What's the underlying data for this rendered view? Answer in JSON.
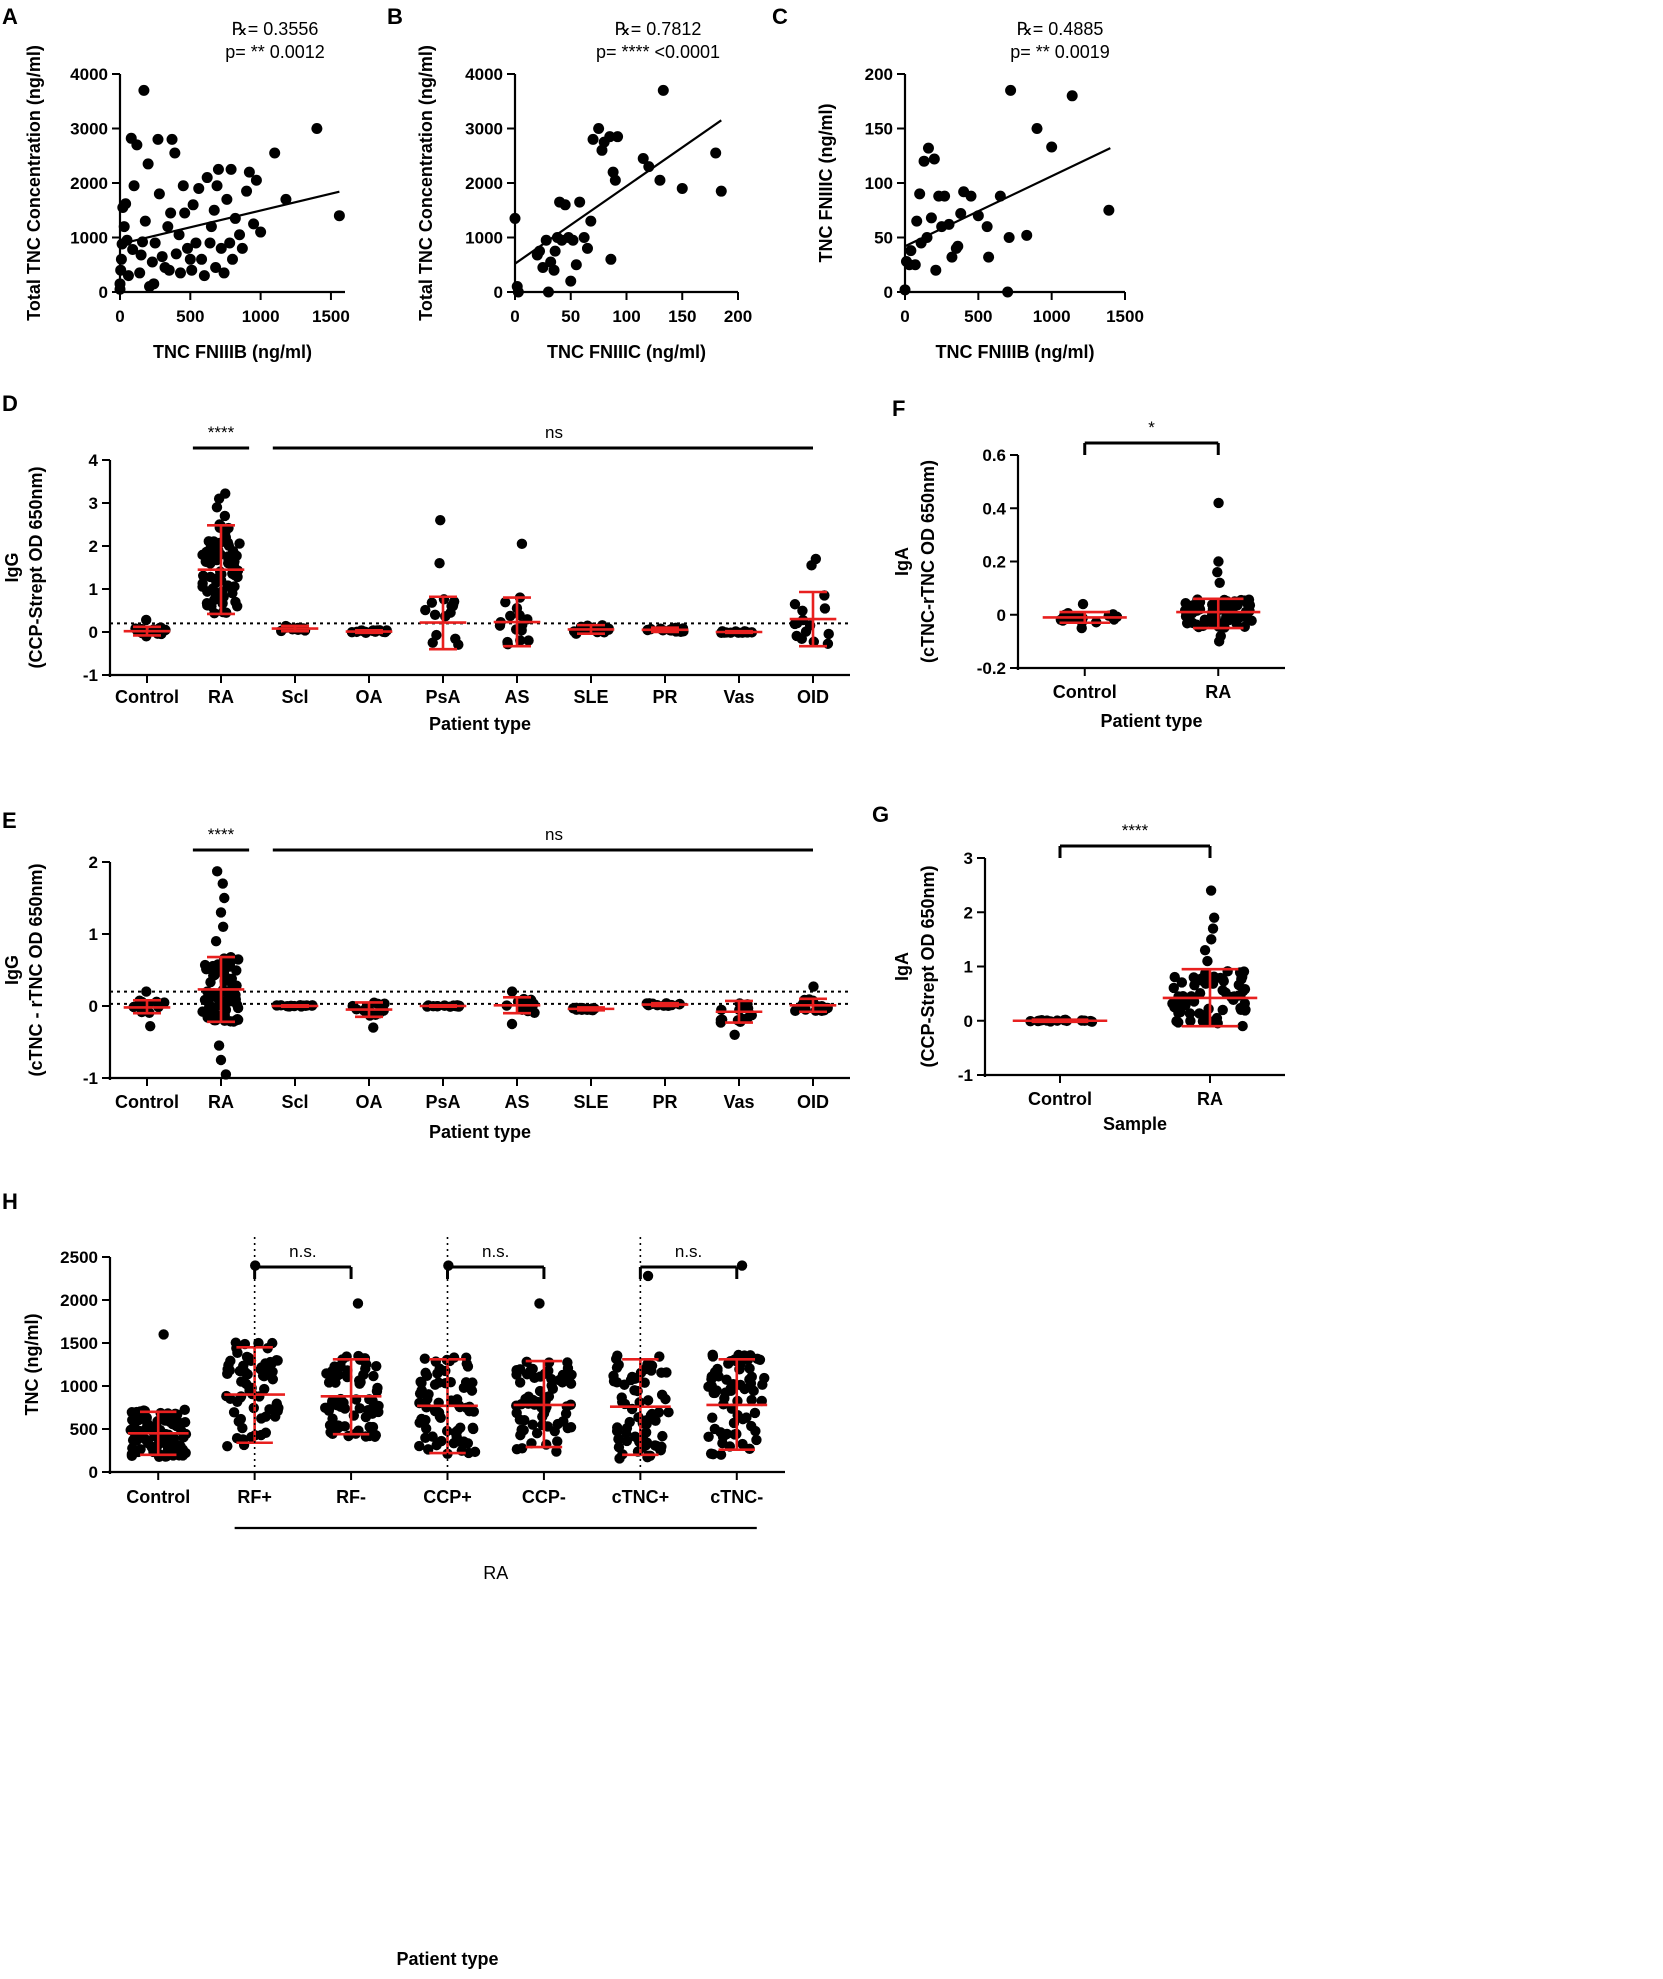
{
  "colors": {
    "ink": "#000000",
    "accent": "#e8201f"
  },
  "chart_data": [
    {
      "panel": "A",
      "type": "scatter",
      "stat_r": "℞= 0.3556",
      "stat_p": "p= ** 0.0012",
      "xlabel": "TNC FNIIIB (ng/ml)",
      "ylabel": "Total TNC Concentration (ng/ml)",
      "xlim": [
        0,
        1600
      ],
      "ylim": [
        0,
        4000
      ],
      "xticks": [
        0,
        500,
        1000,
        1500
      ],
      "yticks": [
        0,
        1000,
        2000,
        3000,
        4000
      ],
      "fit": [
        [
          0,
          880
        ],
        [
          1560,
          1840
        ]
      ],
      "points": [
        [
          0,
          50
        ],
        [
          0,
          150
        ],
        [
          5,
          400
        ],
        [
          10,
          600
        ],
        [
          15,
          880
        ],
        [
          20,
          1550
        ],
        [
          30,
          1200
        ],
        [
          40,
          1620
        ],
        [
          50,
          950
        ],
        [
          60,
          300
        ],
        [
          80,
          2820
        ],
        [
          90,
          780
        ],
        [
          100,
          1950
        ],
        [
          120,
          2700
        ],
        [
          140,
          350
        ],
        [
          150,
          680
        ],
        [
          160,
          920
        ],
        [
          170,
          3700
        ],
        [
          180,
          1300
        ],
        [
          200,
          2350
        ],
        [
          210,
          100
        ],
        [
          230,
          550
        ],
        [
          240,
          150
        ],
        [
          250,
          900
        ],
        [
          270,
          2800
        ],
        [
          280,
          1800
        ],
        [
          300,
          650
        ],
        [
          320,
          450
        ],
        [
          340,
          1200
        ],
        [
          350,
          400
        ],
        [
          360,
          1450
        ],
        [
          370,
          2800
        ],
        [
          390,
          2550
        ],
        [
          400,
          700
        ],
        [
          420,
          1050
        ],
        [
          430,
          350
        ],
        [
          450,
          1950
        ],
        [
          460,
          1450
        ],
        [
          480,
          800
        ],
        [
          500,
          600
        ],
        [
          510,
          400
        ],
        [
          520,
          1600
        ],
        [
          540,
          900
        ],
        [
          560,
          1900
        ],
        [
          580,
          600
        ],
        [
          600,
          300
        ],
        [
          620,
          2100
        ],
        [
          640,
          900
        ],
        [
          650,
          1200
        ],
        [
          670,
          1500
        ],
        [
          680,
          450
        ],
        [
          690,
          1950
        ],
        [
          700,
          2250
        ],
        [
          720,
          800
        ],
        [
          740,
          350
        ],
        [
          760,
          1700
        ],
        [
          780,
          900
        ],
        [
          790,
          2250
        ],
        [
          800,
          600
        ],
        [
          820,
          1350
        ],
        [
          850,
          1050
        ],
        [
          870,
          800
        ],
        [
          900,
          1850
        ],
        [
          920,
          2200
        ],
        [
          950,
          1250
        ],
        [
          970,
          2050
        ],
        [
          1000,
          1100
        ],
        [
          1100,
          2550
        ],
        [
          1180,
          1700
        ],
        [
          1400,
          3000
        ],
        [
          1560,
          1400
        ]
      ]
    },
    {
      "panel": "B",
      "type": "scatter",
      "stat_r": "℞= 0.7812",
      "stat_p": "p= **** <0.0001",
      "xlabel": "TNC FNIIIC (ng/ml)",
      "ylabel": "Total TNC Concentration (ng/ml)",
      "xlim": [
        0,
        200
      ],
      "ylim": [
        0,
        4000
      ],
      "xticks": [
        0,
        50,
        100,
        150,
        200
      ],
      "yticks": [
        0,
        1000,
        2000,
        3000,
        4000
      ],
      "fit": [
        [
          0,
          520
        ],
        [
          185,
          3150
        ]
      ],
      "points": [
        [
          0,
          1350
        ],
        [
          2,
          100
        ],
        [
          3,
          0
        ],
        [
          20,
          680
        ],
        [
          22,
          750
        ],
        [
          25,
          450
        ],
        [
          28,
          950
        ],
        [
          30,
          0
        ],
        [
          32,
          550
        ],
        [
          35,
          400
        ],
        [
          36,
          750
        ],
        [
          38,
          1000
        ],
        [
          40,
          1650
        ],
        [
          42,
          950
        ],
        [
          45,
          1600
        ],
        [
          48,
          1000
        ],
        [
          50,
          200
        ],
        [
          52,
          950
        ],
        [
          55,
          500
        ],
        [
          58,
          1650
        ],
        [
          62,
          1000
        ],
        [
          65,
          800
        ],
        [
          68,
          1300
        ],
        [
          70,
          2800
        ],
        [
          75,
          3000
        ],
        [
          78,
          2600
        ],
        [
          80,
          2750
        ],
        [
          85,
          2850
        ],
        [
          86,
          600
        ],
        [
          88,
          2200
        ],
        [
          90,
          2050
        ],
        [
          92,
          2850
        ],
        [
          115,
          2450
        ],
        [
          120,
          2300
        ],
        [
          130,
          2050
        ],
        [
          133,
          3700
        ],
        [
          150,
          1900
        ],
        [
          180,
          2550
        ],
        [
          185,
          1850
        ]
      ]
    },
    {
      "panel": "C",
      "type": "scatter",
      "stat_r": "℞= 0.4885",
      "stat_p": "p= ** 0.0019",
      "xlabel": "TNC FNIIIB (ng/ml)",
      "ylabel": "TNC FNIIIC (ng/ml)",
      "xlim": [
        0,
        1500
      ],
      "ylim": [
        0,
        200
      ],
      "xticks": [
        0,
        500,
        1000,
        1500
      ],
      "yticks": [
        0,
        50,
        100,
        150,
        200
      ],
      "fit": [
        [
          0,
          42
        ],
        [
          1400,
          132
        ]
      ],
      "points": [
        [
          0,
          2
        ],
        [
          10,
          28
        ],
        [
          30,
          25
        ],
        [
          40,
          38
        ],
        [
          70,
          25
        ],
        [
          80,
          65
        ],
        [
          100,
          90
        ],
        [
          110,
          45
        ],
        [
          130,
          120
        ],
        [
          150,
          50
        ],
        [
          160,
          132
        ],
        [
          180,
          68
        ],
        [
          200,
          122
        ],
        [
          210,
          20
        ],
        [
          230,
          88
        ],
        [
          250,
          60
        ],
        [
          270,
          88
        ],
        [
          300,
          62
        ],
        [
          320,
          32
        ],
        [
          350,
          40
        ],
        [
          360,
          42
        ],
        [
          380,
          72
        ],
        [
          400,
          92
        ],
        [
          450,
          88
        ],
        [
          500,
          70
        ],
        [
          560,
          60
        ],
        [
          570,
          32
        ],
        [
          650,
          88
        ],
        [
          700,
          0
        ],
        [
          710,
          50
        ],
        [
          720,
          185
        ],
        [
          830,
          52
        ],
        [
          900,
          150
        ],
        [
          1000,
          133
        ],
        [
          1140,
          180
        ],
        [
          1390,
          75
        ]
      ]
    },
    {
      "panel": "D",
      "type": "scatter",
      "xlabel": "Patient type",
      "ylabel": "IgG",
      "ylabel2": "(CCP-Strept OD 650nm)",
      "ylim": [
        -1,
        4
      ],
      "yticks": [
        -1,
        0,
        1,
        2,
        3,
        4
      ],
      "categories": [
        "Control",
        "RA",
        "Scl",
        "OA",
        "PsA",
        "AS",
        "SLE",
        "PR",
        "Vas",
        "OID"
      ],
      "means": [
        0.02,
        1.45,
        0.08,
        0.01,
        0.22,
        0.23,
        0.06,
        0.05,
        0.0,
        0.3
      ],
      "err_low": [
        -0.08,
        0.42,
        0.02,
        -0.02,
        -0.4,
        -0.33,
        -0.04,
        0.0,
        -0.02,
        -0.33
      ],
      "err_high": [
        0.12,
        2.48,
        0.14,
        0.04,
        0.82,
        0.8,
        0.16,
        0.1,
        0.02,
        0.93
      ],
      "extra_points": [
        [
          0,
          0.28
        ],
        [
          0,
          -0.1
        ],
        [
          1,
          3.22
        ],
        [
          1,
          3.1
        ],
        [
          1,
          2.9
        ],
        [
          1,
          2.7
        ],
        [
          1,
          2.5
        ],
        [
          1,
          2.2
        ],
        [
          1,
          1.9
        ],
        [
          4,
          2.6
        ],
        [
          4,
          1.6
        ],
        [
          5,
          2.05
        ],
        [
          5,
          0.8
        ],
        [
          9,
          1.7
        ],
        [
          9,
          1.55
        ]
      ],
      "threshold": 0.2,
      "sig": [
        {
          "label": "****",
          "from": 1,
          "to": 1
        },
        {
          "label": "ns",
          "from": 2,
          "to": 9
        }
      ]
    },
    {
      "panel": "E",
      "type": "scatter",
      "xlabel": "Patient type",
      "ylabel": "IgG",
      "ylabel2": "(cTNC - rTNC OD 650nm)",
      "ylim": [
        -1,
        2
      ],
      "yticks": [
        -1,
        0,
        1,
        2
      ],
      "categories": [
        "Control",
        "RA",
        "Scl",
        "OA",
        "PsA",
        "AS",
        "SLE",
        "PR",
        "Vas",
        "OID"
      ],
      "means": [
        -0.02,
        0.23,
        0.0,
        -0.05,
        0.0,
        0.01,
        -0.04,
        0.02,
        -0.08,
        0.01
      ],
      "err_low": [
        -0.1,
        -0.22,
        -0.01,
        -0.15,
        -0.01,
        -0.1,
        -0.06,
        0.0,
        -0.23,
        -0.08
      ],
      "err_high": [
        0.08,
        0.68,
        0.01,
        0.05,
        0.01,
        0.12,
        -0.02,
        0.04,
        0.07,
        0.1
      ],
      "extra_points": [
        [
          0,
          0.2
        ],
        [
          0,
          -0.28
        ],
        [
          1,
          1.87
        ],
        [
          1,
          1.7
        ],
        [
          1,
          1.5
        ],
        [
          1,
          1.3
        ],
        [
          1,
          1.1
        ],
        [
          1,
          0.9
        ],
        [
          1,
          -0.55
        ],
        [
          1,
          -0.75
        ],
        [
          1,
          -0.95
        ],
        [
          3,
          -0.3
        ],
        [
          5,
          0.2
        ],
        [
          5,
          -0.25
        ],
        [
          8,
          -0.4
        ],
        [
          9,
          0.27
        ]
      ],
      "threshold": [
        0.2,
        0.03
      ],
      "sig": [
        {
          "label": "****",
          "from": 1,
          "to": 1
        },
        {
          "label": "ns",
          "from": 2,
          "to": 9
        }
      ]
    },
    {
      "panel": "F",
      "type": "scatter",
      "xlabel": "Patient type",
      "ylabel": "IgA",
      "ylabel2": "(cTNC-rTNC OD 650nm)",
      "ylim": [
        -0.2,
        0.6
      ],
      "yticks": [
        -0.2,
        0.0,
        0.2,
        0.4,
        0.6
      ],
      "categories": [
        "Control",
        "RA"
      ],
      "means": [
        -0.01,
        0.01
      ],
      "err_low": [
        -0.03,
        -0.05
      ],
      "err_high": [
        0.01,
        0.06
      ],
      "extra_points": [
        [
          1,
          0.42
        ],
        [
          1,
          0.2
        ],
        [
          1,
          0.16
        ],
        [
          1,
          0.12
        ],
        [
          1,
          -0.08
        ],
        [
          1,
          -0.1
        ],
        [
          0,
          0.04
        ],
        [
          0,
          -0.05
        ]
      ],
      "sig": [
        {
          "label": "*",
          "from": 0,
          "to": 1
        }
      ]
    },
    {
      "panel": "G",
      "type": "scatter",
      "xlabel": "Sample",
      "ylabel": "IgA",
      "ylabel2": "(CCP-Strept OD 650nm)",
      "ylim": [
        -1,
        3
      ],
      "yticks": [
        -1,
        0,
        1,
        2,
        3
      ],
      "categories": [
        "Control",
        "RA"
      ],
      "means": [
        0.0,
        0.42
      ],
      "err_low": [
        -0.02,
        -0.1
      ],
      "err_high": [
        0.02,
        0.95
      ],
      "extra_points": [
        [
          1,
          2.4
        ],
        [
          1,
          1.9
        ],
        [
          1,
          1.7
        ],
        [
          1,
          1.5
        ],
        [
          1,
          1.3
        ],
        [
          1,
          1.1
        ]
      ],
      "sig": [
        {
          "label": "****",
          "from": 0,
          "to": 1
        }
      ]
    },
    {
      "panel": "H",
      "type": "scatter",
      "xlabel": "Patient type",
      "ylabel": "TNC (ng/ml)",
      "group_label": "RA",
      "ylim": [
        0,
        2500
      ],
      "yticks": [
        0,
        500,
        1000,
        1500,
        2000,
        2500
      ],
      "categories": [
        "Control",
        "RF+",
        "RF-",
        "CCP+",
        "CCP-",
        "cTNC+",
        "cTNC-"
      ],
      "means": [
        450,
        900,
        880,
        770,
        780,
        760,
        780
      ],
      "err_low": [
        200,
        340,
        440,
        220,
        290,
        200,
        260
      ],
      "err_high": [
        700,
        1450,
        1310,
        1310,
        1290,
        1310,
        1310
      ],
      "spread_max": [
        1600,
        2400,
        1960,
        2400,
        1960,
        2280,
        2400
      ],
      "sig": [
        {
          "label": "n.s.",
          "from": 1,
          "to": 2
        },
        {
          "label": "n.s.",
          "from": 3,
          "to": 4
        },
        {
          "label": "n.s.",
          "from": 5,
          "to": 6
        }
      ]
    }
  ]
}
